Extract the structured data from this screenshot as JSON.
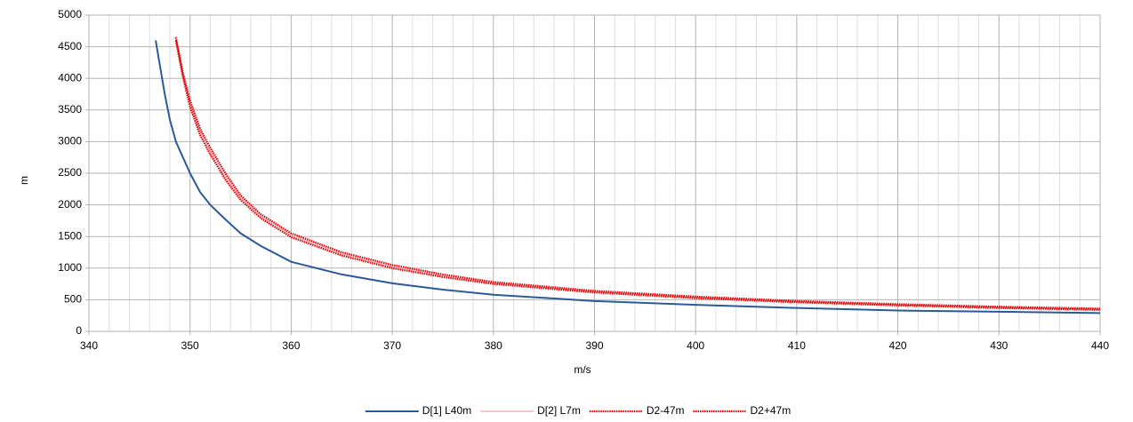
{
  "chart_data": {
    "type": "line",
    "x_label": "m/s",
    "y_label": "m",
    "x": [
      346.6,
      347.5,
      348,
      348.6,
      349.3,
      350,
      351,
      352,
      353.5,
      355,
      357,
      360,
      365,
      370,
      375,
      380,
      390,
      400,
      410,
      420,
      430,
      440
    ],
    "series": [
      {
        "name": "D[1] L40m",
        "color": "#2a5a9a",
        "style": "solid",
        "values": [
          4600,
          3750,
          3350,
          3000,
          2750,
          2500,
          2200,
          2000,
          1770,
          1550,
          1350,
          1100,
          900,
          760,
          660,
          580,
          480,
          420,
          370,
          330,
          310,
          290
        ]
      },
      {
        "name": "D[2] L7m",
        "color": "#f6c6cf",
        "style": "solid",
        "values": [
          null,
          null,
          null,
          4625,
          4050,
          3600,
          3150,
          2850,
          2450,
          2115,
          1820,
          1520,
          1225,
          1025,
          880,
          765,
          628,
          538,
          470,
          420,
          380,
          350
        ]
      },
      {
        "name": "D2-47m",
        "color": "#e00000",
        "style": "dotted",
        "values": [
          null,
          null,
          null,
          4650,
          4080,
          3650,
          3200,
          2900,
          2500,
          2150,
          1850,
          1550,
          1250,
          1050,
          900,
          780,
          640,
          550,
          480,
          430,
          390,
          360
        ]
      },
      {
        "name": "D2+47m",
        "color": "#e00000",
        "style": "dotted",
        "values": [
          null,
          null,
          null,
          4600,
          4020,
          3550,
          3100,
          2800,
          2400,
          2080,
          1790,
          1490,
          1200,
          1000,
          860,
          750,
          615,
          525,
          460,
          410,
          370,
          340
        ]
      }
    ],
    "xlim": [
      340,
      440
    ],
    "xticks": [
      340,
      350,
      360,
      370,
      380,
      390,
      400,
      410,
      420,
      430,
      440
    ],
    "x_minor_divisions": 5,
    "ylim": [
      0,
      5000
    ],
    "yticks": [
      0,
      500,
      1000,
      1500,
      2000,
      2500,
      3000,
      3500,
      4000,
      4500,
      5000
    ],
    "grid": true,
    "legend": "bottom"
  }
}
